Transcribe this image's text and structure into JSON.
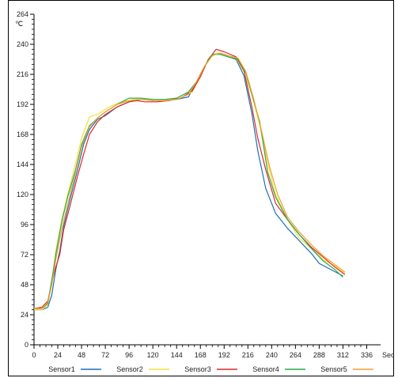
{
  "chart_data": {
    "type": "line",
    "title": "",
    "xlabel": "",
    "ylabel": "",
    "y_unit": "℃",
    "x_unit": "Sec",
    "xlim": [
      0,
      350
    ],
    "ylim": [
      0,
      264
    ],
    "x_ticks": [
      0,
      24,
      48,
      72,
      96,
      120,
      144,
      168,
      192,
      216,
      240,
      264,
      288,
      312,
      336
    ],
    "y_ticks": [
      0,
      24,
      48,
      72,
      96,
      120,
      144,
      168,
      192,
      216,
      240,
      264
    ],
    "grid": false,
    "legend_position": "bottom",
    "series": [
      {
        "name": "Sensor1",
        "color": "#1f6fb5",
        "points": [
          [
            0,
            28
          ],
          [
            8,
            28
          ],
          [
            14,
            30
          ],
          [
            18,
            40
          ],
          [
            22,
            60
          ],
          [
            26,
            75
          ],
          [
            30,
            95
          ],
          [
            36,
            115
          ],
          [
            44,
            140
          ],
          [
            50,
            160
          ],
          [
            56,
            172
          ],
          [
            64,
            180
          ],
          [
            72,
            183
          ],
          [
            84,
            190
          ],
          [
            96,
            194
          ],
          [
            108,
            196
          ],
          [
            120,
            195
          ],
          [
            132,
            195
          ],
          [
            144,
            196
          ],
          [
            156,
            198
          ],
          [
            164,
            210
          ],
          [
            172,
            222
          ],
          [
            180,
            232
          ],
          [
            188,
            232
          ],
          [
            196,
            230
          ],
          [
            204,
            228
          ],
          [
            212,
            215
          ],
          [
            220,
            185
          ],
          [
            226,
            155
          ],
          [
            234,
            125
          ],
          [
            244,
            105
          ],
          [
            256,
            93
          ],
          [
            268,
            83
          ],
          [
            280,
            73
          ],
          [
            288,
            65
          ],
          [
            300,
            60
          ],
          [
            312,
            55
          ]
        ]
      },
      {
        "name": "Sensor2",
        "color": "#f0e040",
        "points": [
          [
            0,
            28
          ],
          [
            8,
            28
          ],
          [
            14,
            32
          ],
          [
            18,
            50
          ],
          [
            22,
            75
          ],
          [
            28,
            100
          ],
          [
            34,
            120
          ],
          [
            42,
            145
          ],
          [
            48,
            165
          ],
          [
            56,
            182
          ],
          [
            64,
            184
          ],
          [
            76,
            190
          ],
          [
            88,
            194
          ],
          [
            100,
            196
          ],
          [
            112,
            196
          ],
          [
            124,
            195
          ],
          [
            136,
            196
          ],
          [
            148,
            197
          ],
          [
            160,
            202
          ],
          [
            168,
            215
          ],
          [
            176,
            228
          ],
          [
            184,
            233
          ],
          [
            192,
            232
          ],
          [
            204,
            229
          ],
          [
            212,
            218
          ],
          [
            220,
            200
          ],
          [
            228,
            175
          ],
          [
            236,
            145
          ],
          [
            244,
            120
          ],
          [
            256,
            100
          ],
          [
            268,
            85
          ],
          [
            280,
            77
          ],
          [
            292,
            68
          ],
          [
            304,
            63
          ],
          [
            314,
            57
          ]
        ]
      },
      {
        "name": "Sensor3",
        "color": "#dd2a2a",
        "points": [
          [
            0,
            29
          ],
          [
            8,
            30
          ],
          [
            14,
            35
          ],
          [
            18,
            50
          ],
          [
            22,
            62
          ],
          [
            26,
            72
          ],
          [
            30,
            92
          ],
          [
            36,
            110
          ],
          [
            44,
            135
          ],
          [
            50,
            152
          ],
          [
            56,
            168
          ],
          [
            64,
            178
          ],
          [
            72,
            184
          ],
          [
            84,
            190
          ],
          [
            96,
            194
          ],
          [
            104,
            195
          ],
          [
            112,
            194
          ],
          [
            124,
            194
          ],
          [
            136,
            195
          ],
          [
            148,
            197
          ],
          [
            160,
            203
          ],
          [
            168,
            214
          ],
          [
            176,
            228
          ],
          [
            184,
            236
          ],
          [
            192,
            234
          ],
          [
            204,
            230
          ],
          [
            212,
            219
          ],
          [
            220,
            190
          ],
          [
            226,
            165
          ],
          [
            234,
            140
          ],
          [
            244,
            113
          ],
          [
            256,
            100
          ],
          [
            268,
            88
          ],
          [
            280,
            78
          ],
          [
            292,
            70
          ],
          [
            304,
            62
          ],
          [
            314,
            56
          ]
        ]
      },
      {
        "name": "Sensor4",
        "color": "#2aaa4a",
        "points": [
          [
            0,
            29
          ],
          [
            8,
            29
          ],
          [
            14,
            33
          ],
          [
            18,
            52
          ],
          [
            22,
            72
          ],
          [
            28,
            98
          ],
          [
            34,
            118
          ],
          [
            42,
            140
          ],
          [
            48,
            160
          ],
          [
            56,
            175
          ],
          [
            64,
            181
          ],
          [
            72,
            186
          ],
          [
            84,
            192
          ],
          [
            96,
            197
          ],
          [
            108,
            197
          ],
          [
            120,
            196
          ],
          [
            132,
            196
          ],
          [
            144,
            197
          ],
          [
            156,
            202
          ],
          [
            164,
            210
          ],
          [
            172,
            222
          ],
          [
            180,
            232
          ],
          [
            188,
            232
          ],
          [
            196,
            230
          ],
          [
            206,
            228
          ],
          [
            214,
            217
          ],
          [
            220,
            200
          ],
          [
            228,
            178
          ],
          [
            236,
            138
          ],
          [
            244,
            118
          ],
          [
            256,
            100
          ],
          [
            268,
            88
          ],
          [
            280,
            77
          ],
          [
            292,
            67
          ],
          [
            304,
            60
          ],
          [
            312,
            54
          ]
        ]
      },
      {
        "name": "Sensor5",
        "color": "#f0a030",
        "points": [
          [
            0,
            29
          ],
          [
            8,
            29
          ],
          [
            14,
            34
          ],
          [
            18,
            48
          ],
          [
            22,
            68
          ],
          [
            28,
            92
          ],
          [
            34,
            112
          ],
          [
            42,
            138
          ],
          [
            48,
            158
          ],
          [
            56,
            174
          ],
          [
            64,
            181
          ],
          [
            72,
            186
          ],
          [
            84,
            192
          ],
          [
            96,
            195
          ],
          [
            108,
            196
          ],
          [
            120,
            195
          ],
          [
            132,
            195
          ],
          [
            144,
            196
          ],
          [
            156,
            200
          ],
          [
            164,
            210
          ],
          [
            172,
            222
          ],
          [
            180,
            231
          ],
          [
            188,
            233
          ],
          [
            196,
            231
          ],
          [
            206,
            229
          ],
          [
            214,
            218
          ],
          [
            222,
            196
          ],
          [
            230,
            170
          ],
          [
            238,
            142
          ],
          [
            246,
            120
          ],
          [
            256,
            102
          ],
          [
            268,
            90
          ],
          [
            280,
            80
          ],
          [
            292,
            71
          ],
          [
            304,
            64
          ],
          [
            314,
            58
          ]
        ]
      }
    ]
  }
}
